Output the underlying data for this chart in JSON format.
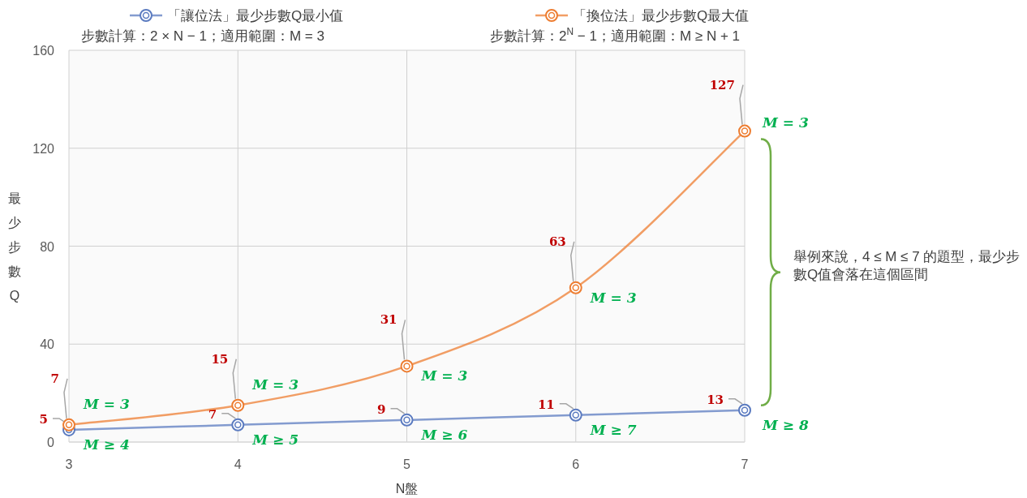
{
  "chart_data": {
    "type": "line",
    "x": [
      3,
      4,
      5,
      6,
      7
    ],
    "series": [
      {
        "name": "「讓位法」最少步數Q最小值",
        "color": "#5b7bc0",
        "values": [
          5,
          7,
          9,
          11,
          13
        ]
      },
      {
        "name": "「換位法」最少步數Q最大值",
        "color": "#ed7d31",
        "values": [
          7,
          15,
          31,
          63,
          127
        ]
      }
    ],
    "xlim": [
      3,
      7
    ],
    "xticks": [
      3,
      4,
      5,
      6,
      7
    ],
    "ylim": [
      0,
      160
    ],
    "yticks": [
      0,
      40,
      80,
      120,
      160
    ],
    "xlabel": "N盤",
    "ylabel": "最少步數Q",
    "grid": true,
    "legend": "top",
    "marker": "circle",
    "line_style": "solid",
    "data_labels": true,
    "annotations": [
      "步數計算：2 × N − 1；適用範圍：M = 3",
      "步數計算：2$^{N}$ − 1；適用範圍：M ≥ N + 1",
      "舉例來說，4 ≤ M ≤ 7 的題型，最少步數Q值會落在這個區間",
      {
        "text": "M ≥ 4",
        "x": 3,
        "y": 5
      },
      {
        "text": "M ≥ 5",
        "x": 4,
        "y": 7
      },
      {
        "text": "M ≥ 6",
        "x": 5,
        "y": 9
      },
      {
        "text": "M ≥ 7",
        "x": 6,
        "y": 11
      },
      {
        "text": "M ≥ 8",
        "x": 7,
        "y": 13
      },
      {
        "text": "M = 3",
        "x": 3,
        "y": 7
      },
      {
        "text": "M = 3",
        "x": 4,
        "y": 15
      },
      {
        "text": "M = 3",
        "x": 5,
        "y": 31
      },
      {
        "text": "M = 3",
        "x": 6,
        "y": 63
      },
      {
        "text": "M = 3",
        "x": 7,
        "y": 127
      }
    ]
  }
}
